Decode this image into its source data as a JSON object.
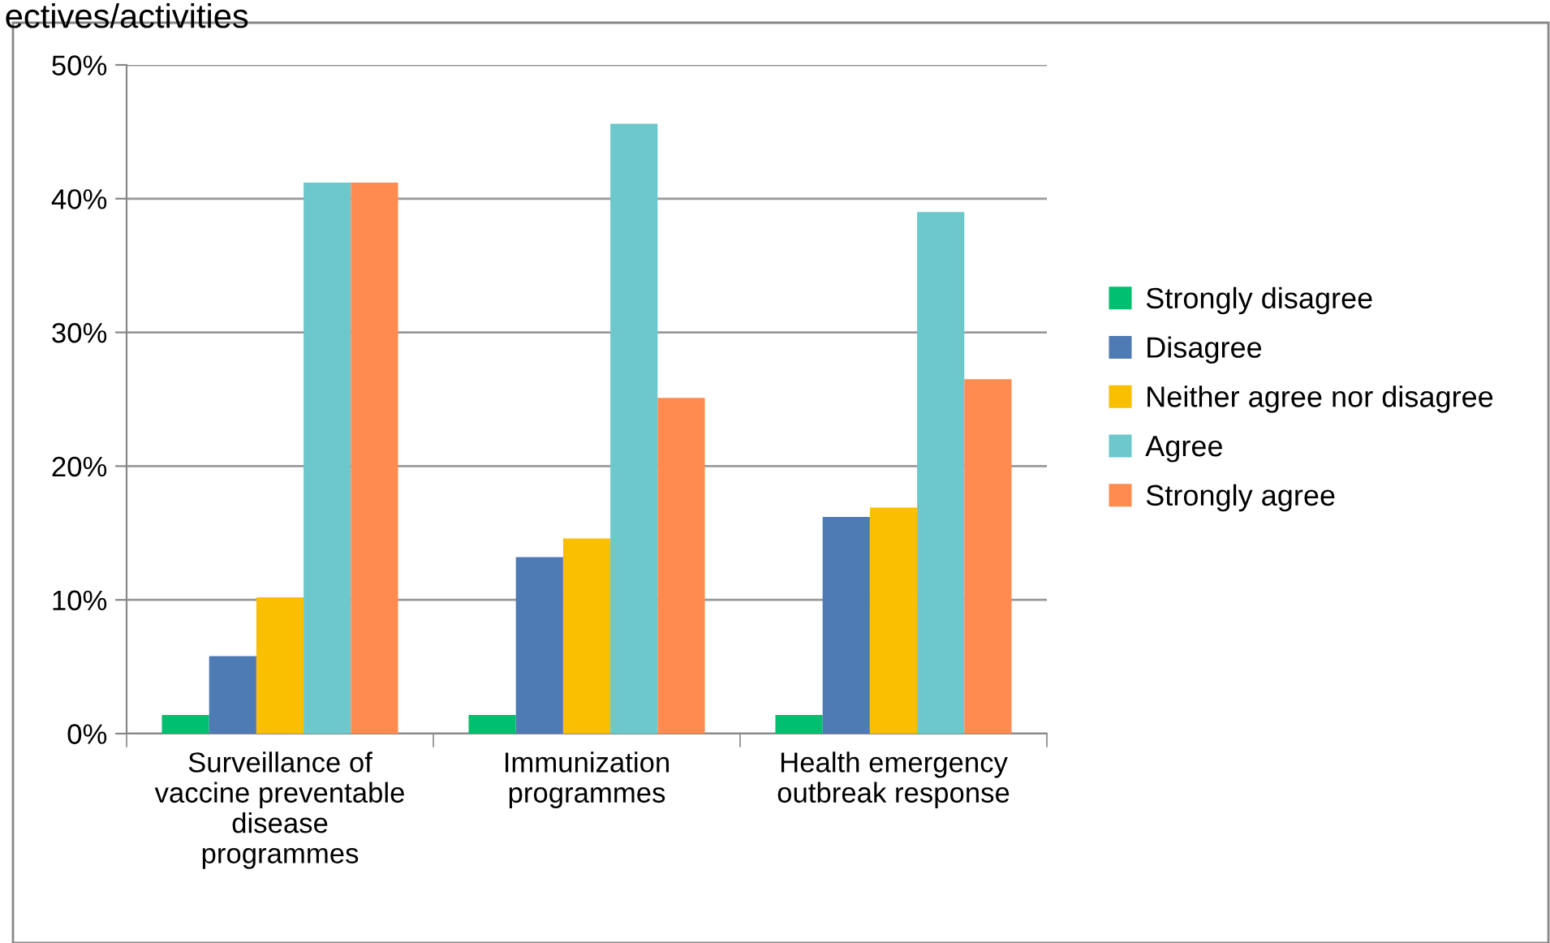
{
  "chart_data": {
    "type": "bar",
    "title": "ectives/activities",
    "categories": [
      "Surveillance of\nvaccine preventable\ndisease\nprogrammes",
      "Immunization\nprogrammes",
      "Health emergency\noutbreak response"
    ],
    "series": [
      {
        "name": "Strongly disagree",
        "color": "#00bf6f",
        "values": [
          1.4,
          1.4,
          1.4
        ]
      },
      {
        "name": "Disagree",
        "color": "#4f7bb5",
        "values": [
          5.8,
          13.2,
          16.2
        ]
      },
      {
        "name": "Neither agree nor disagree",
        "color": "#f9bf00",
        "values": [
          10.2,
          14.6,
          16.9
        ]
      },
      {
        "name": "Agree",
        "color": "#6dc8cc",
        "values": [
          41.2,
          45.6,
          39.0
        ]
      },
      {
        "name": "Strongly agree",
        "color": "#ff8b50",
        "values": [
          41.2,
          25.1,
          26.5
        ]
      }
    ],
    "ylim": [
      0,
      50
    ],
    "yticks": [
      {
        "value": 0,
        "label": "0%"
      },
      {
        "value": 10,
        "label": "10%"
      },
      {
        "value": 20,
        "label": "20%"
      },
      {
        "value": 30,
        "label": "30%"
      },
      {
        "value": 40,
        "label": "40%"
      },
      {
        "value": 50,
        "label": "50%"
      }
    ],
    "grid": "y",
    "legend": "right"
  }
}
